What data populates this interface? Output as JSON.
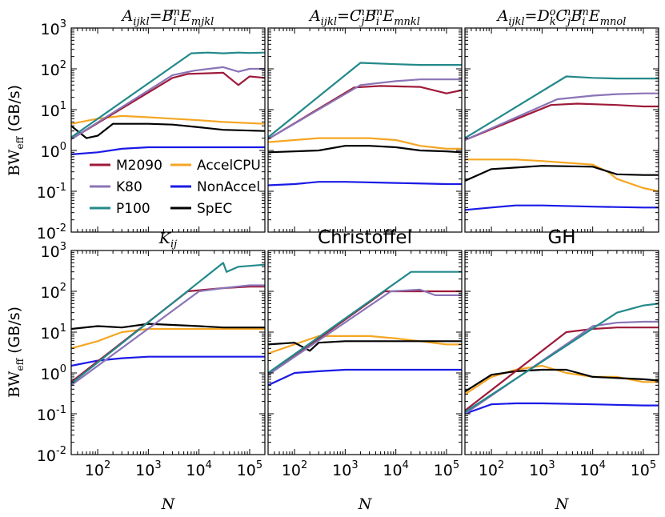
{
  "figure": {
    "ylabel_main": "BW",
    "ylabel_sub": "eff",
    "ylabel_unit": " (GB/s)",
    "xlabel": "N"
  },
  "legend": {
    "entries": [
      {
        "label": "M2090",
        "color": "#9e1a3a"
      },
      {
        "label": "AccelCPU",
        "color": "#f5a623"
      },
      {
        "label": "K80",
        "color": "#8a74b6"
      },
      {
        "label": "NonAccel",
        "color": "#1a1ae6"
      },
      {
        "label": "P100",
        "color": "#23898a"
      },
      {
        "label": "SpEC",
        "color": "#000000"
      }
    ]
  },
  "ticks": {
    "x": [
      {
        "base": "10",
        "exp": "2",
        "value": 100
      },
      {
        "base": "10",
        "exp": "3",
        "value": 1000
      },
      {
        "base": "10",
        "exp": "4",
        "value": 10000
      },
      {
        "base": "10",
        "exp": "5",
        "value": 100000
      }
    ],
    "y": [
      {
        "base": "10",
        "exp": "-2",
        "value": 0.01
      },
      {
        "base": "10",
        "exp": "-1",
        "value": 0.1
      },
      {
        "base": "10",
        "exp": "0",
        "value": 1
      },
      {
        "base": "10",
        "exp": "1",
        "value": 10
      },
      {
        "base": "10",
        "exp": "2",
        "value": 100
      },
      {
        "base": "10",
        "exp": "3",
        "value": 1000
      }
    ]
  },
  "panels": [
    {
      "title_parts": [
        "A",
        "ijkl",
        "=B",
        "i",
        "m",
        "E",
        "mjkl"
      ],
      "title_style": "math"
    },
    {
      "title_parts": [
        "A",
        "ijkl",
        "=C",
        "j",
        "n",
        "B",
        "i",
        "m",
        "E",
        "mnkl"
      ],
      "title_style": "math"
    },
    {
      "title_parts": [
        "A",
        "ijkl",
        "=D",
        "k",
        "o",
        "C",
        "j",
        "n",
        "B",
        "i",
        "m",
        "E",
        "mnol"
      ],
      "title_style": "math"
    },
    {
      "title_parts": [
        "K",
        "ij"
      ],
      "title_style": "math"
    },
    {
      "title": "Christoffel",
      "title_style": "sans"
    },
    {
      "title": "GH",
      "title_style": "sans"
    }
  ],
  "chart_data": [
    {
      "type": "line",
      "title": "A_ijkl = B_i^m E_mjkl",
      "xlabel": "",
      "ylabel": "BW_eff (GB/s)",
      "xscale": "log",
      "yscale": "log",
      "xlim": [
        30,
        200000
      ],
      "ylim": [
        0.01,
        1000
      ],
      "series": [
        {
          "name": "M2090",
          "x": [
            30,
            3000,
            6000,
            30000,
            60000,
            100000,
            200000
          ],
          "y": [
            1.9,
            60,
            75,
            80,
            40,
            65,
            60
          ]
        },
        {
          "name": "K80",
          "x": [
            30,
            3000,
            8000,
            30000,
            60000,
            100000,
            200000
          ],
          "y": [
            1.9,
            70,
            90,
            110,
            85,
            100,
            100
          ]
        },
        {
          "name": "P100",
          "x": [
            30,
            7000,
            15000,
            30000,
            60000,
            100000,
            200000
          ],
          "y": [
            2.1,
            240,
            250,
            240,
            250,
            245,
            250
          ]
        },
        {
          "name": "AccelCPU",
          "x": [
            30,
            100,
            300,
            1000,
            3000,
            10000,
            30000,
            200000
          ],
          "y": [
            4.5,
            6,
            7,
            6.5,
            6,
            5.5,
            5,
            4.5
          ]
        },
        {
          "name": "NonAccel",
          "x": [
            30,
            100,
            300,
            1000,
            3000,
            10000,
            100000,
            200000
          ],
          "y": [
            0.8,
            0.9,
            1.1,
            1.2,
            1.2,
            1.2,
            1.2,
            1.2
          ]
        },
        {
          "name": "SpEC",
          "x": [
            30,
            60,
            100,
            200,
            1000,
            3000,
            10000,
            30000,
            200000
          ],
          "y": [
            4.0,
            2.0,
            2.3,
            4.5,
            4.5,
            4.3,
            3.7,
            3.2,
            3.0
          ]
        }
      ]
    },
    {
      "type": "line",
      "title": "A_ijkl = C_j^n B_i^m E_mnkl",
      "xlabel": "",
      "ylabel": "",
      "xscale": "log",
      "yscale": "log",
      "xlim": [
        30,
        200000
      ],
      "ylim": [
        0.01,
        1000
      ],
      "series": [
        {
          "name": "M2090",
          "x": [
            30,
            1500,
            5000,
            30000,
            100000,
            200000
          ],
          "y": [
            1.9,
            35,
            38,
            36,
            25,
            30
          ]
        },
        {
          "name": "K80",
          "x": [
            30,
            2000,
            10000,
            30000,
            100000,
            200000
          ],
          "y": [
            1.9,
            40,
            50,
            55,
            55,
            55
          ]
        },
        {
          "name": "P100",
          "x": [
            30,
            2000,
            10000,
            30000,
            100000,
            200000
          ],
          "y": [
            2.1,
            140,
            130,
            125,
            125,
            125
          ]
        },
        {
          "name": "AccelCPU",
          "x": [
            30,
            300,
            1000,
            3000,
            10000,
            30000,
            100000,
            200000
          ],
          "y": [
            1.6,
            2,
            2,
            2,
            1.8,
            1.3,
            1.1,
            1.1
          ]
        },
        {
          "name": "NonAccel",
          "x": [
            30,
            100,
            300,
            1000,
            10000,
            100000,
            200000
          ],
          "y": [
            0.14,
            0.15,
            0.17,
            0.17,
            0.16,
            0.15,
            0.15
          ]
        },
        {
          "name": "SpEC",
          "x": [
            30,
            300,
            1000,
            3000,
            10000,
            30000,
            100000,
            200000
          ],
          "y": [
            0.9,
            1.0,
            1.3,
            1.3,
            1.2,
            1.0,
            0.95,
            0.9
          ]
        }
      ]
    },
    {
      "type": "line",
      "title": "A_ijkl = D_k^o C_j^n B_i^m E_mnol",
      "xlabel": "",
      "ylabel": "",
      "xscale": "log",
      "yscale": "log",
      "xlim": [
        30,
        200000
      ],
      "ylim": [
        0.01,
        1000
      ],
      "series": [
        {
          "name": "M2090",
          "x": [
            30,
            1500,
            5000,
            30000,
            100000,
            200000
          ],
          "y": [
            1.8,
            13,
            14,
            13,
            12,
            12
          ]
        },
        {
          "name": "K80",
          "x": [
            30,
            2000,
            10000,
            30000,
            100000,
            200000
          ],
          "y": [
            1.8,
            18,
            22,
            24,
            25,
            25
          ]
        },
        {
          "name": "P100",
          "x": [
            30,
            3000,
            10000,
            30000,
            100000,
            200000
          ],
          "y": [
            2.0,
            65,
            60,
            58,
            58,
            58
          ]
        },
        {
          "name": "AccelCPU",
          "x": [
            30,
            300,
            1000,
            3000,
            10000,
            20000,
            30000,
            100000,
            200000
          ],
          "y": [
            0.6,
            0.6,
            0.55,
            0.5,
            0.45,
            0.3,
            0.2,
            0.12,
            0.1
          ]
        },
        {
          "name": "NonAccel",
          "x": [
            30,
            100,
            300,
            1000,
            10000,
            100000,
            200000
          ],
          "y": [
            0.035,
            0.04,
            0.045,
            0.045,
            0.042,
            0.04,
            0.04
          ]
        },
        {
          "name": "SpEC",
          "x": [
            30,
            100,
            300,
            1000,
            10000,
            30000,
            100000,
            200000
          ],
          "y": [
            0.18,
            0.35,
            0.38,
            0.42,
            0.4,
            0.26,
            0.25,
            0.25
          ]
        }
      ]
    },
    {
      "type": "line",
      "title": "K_ij",
      "xlabel": "N",
      "ylabel": "BW_eff (GB/s)",
      "xscale": "log",
      "yscale": "log",
      "xlim": [
        30,
        200000
      ],
      "ylim": [
        0.01,
        1000
      ],
      "series": [
        {
          "name": "M2090",
          "x": [
            30,
            6000,
            30000,
            100000,
            200000
          ],
          "y": [
            0.6,
            100,
            120,
            130,
            130
          ]
        },
        {
          "name": "K80",
          "x": [
            30,
            10000,
            30000,
            100000,
            200000
          ],
          "y": [
            0.5,
            100,
            120,
            140,
            140
          ]
        },
        {
          "name": "P100",
          "x": [
            30,
            30000,
            35000,
            60000,
            200000
          ],
          "y": [
            0.55,
            500,
            300,
            400,
            450
          ]
        },
        {
          "name": "AccelCPU",
          "x": [
            30,
            100,
            300,
            1000,
            3000,
            10000,
            30000,
            200000
          ],
          "y": [
            4,
            6,
            10,
            12,
            12,
            12,
            12,
            12
          ]
        },
        {
          "name": "NonAccel",
          "x": [
            30,
            100,
            300,
            1000,
            3000,
            10000,
            100000,
            200000
          ],
          "y": [
            1.5,
            2,
            2.3,
            2.5,
            2.5,
            2.5,
            2.5,
            2.5
          ]
        },
        {
          "name": "SpEC",
          "x": [
            30,
            100,
            300,
            1000,
            3000,
            10000,
            30000,
            200000
          ],
          "y": [
            12,
            14,
            13,
            16,
            15,
            14,
            13,
            13
          ]
        }
      ]
    },
    {
      "type": "line",
      "title": "Christoffel",
      "xlabel": "N",
      "ylabel": "",
      "xscale": "log",
      "yscale": "log",
      "xlim": [
        30,
        200000
      ],
      "ylim": [
        0.01,
        1000
      ],
      "series": [
        {
          "name": "M2090",
          "x": [
            30,
            6000,
            30000,
            100000,
            200000
          ],
          "y": [
            0.9,
            100,
            100,
            100,
            100
          ]
        },
        {
          "name": "K80",
          "x": [
            30,
            8000,
            30000,
            60000,
            200000
          ],
          "y": [
            0.9,
            100,
            110,
            80,
            80
          ]
        },
        {
          "name": "P100",
          "x": [
            30,
            20000,
            60000,
            200000
          ],
          "y": [
            1.0,
            300,
            300,
            300
          ]
        },
        {
          "name": "AccelCPU",
          "x": [
            30,
            300,
            1000,
            3000,
            10000,
            30000,
            100000,
            200000
          ],
          "y": [
            3,
            8,
            8,
            8,
            7,
            6,
            5,
            5
          ]
        },
        {
          "name": "NonAccel",
          "x": [
            30,
            100,
            300,
            1000,
            10000,
            100000,
            200000
          ],
          "y": [
            0.5,
            1.0,
            1.1,
            1.2,
            1.2,
            1.2,
            1.2
          ]
        },
        {
          "name": "SpEC",
          "x": [
            30,
            100,
            200,
            300,
            1000,
            3000,
            10000,
            200000
          ],
          "y": [
            5,
            5.5,
            3.5,
            5.5,
            6,
            6,
            6,
            6
          ]
        }
      ]
    },
    {
      "type": "line",
      "title": "GH",
      "xlabel": "N",
      "ylabel": "",
      "xscale": "log",
      "yscale": "log",
      "xlim": [
        30,
        200000
      ],
      "ylim": [
        0.01,
        1000
      ],
      "series": [
        {
          "name": "M2090",
          "x": [
            30,
            3000,
            10000,
            30000,
            100000,
            200000
          ],
          "y": [
            0.12,
            10,
            12,
            13,
            13,
            13
          ]
        },
        {
          "name": "K80",
          "x": [
            30,
            10000,
            30000,
            100000,
            200000
          ],
          "y": [
            0.1,
            14,
            17,
            18,
            18
          ]
        },
        {
          "name": "P100",
          "x": [
            30,
            30000,
            100000,
            200000
          ],
          "y": [
            0.11,
            30,
            45,
            50
          ]
        },
        {
          "name": "AccelCPU",
          "x": [
            30,
            100,
            300,
            1000,
            3000,
            10000,
            30000,
            100000,
            200000
          ],
          "y": [
            0.3,
            0.8,
            1.2,
            1.5,
            1.0,
            0.8,
            0.8,
            0.6,
            0.6
          ]
        },
        {
          "name": "NonAccel",
          "x": [
            30,
            100,
            300,
            1000,
            10000,
            100000,
            200000
          ],
          "y": [
            0.1,
            0.17,
            0.18,
            0.18,
            0.17,
            0.16,
            0.16
          ]
        },
        {
          "name": "SpEC",
          "x": [
            30,
            100,
            300,
            1000,
            3000,
            10000,
            100000,
            200000
          ],
          "y": [
            0.35,
            0.9,
            1.1,
            1.2,
            1.2,
            0.8,
            0.7,
            0.65
          ]
        }
      ]
    }
  ]
}
